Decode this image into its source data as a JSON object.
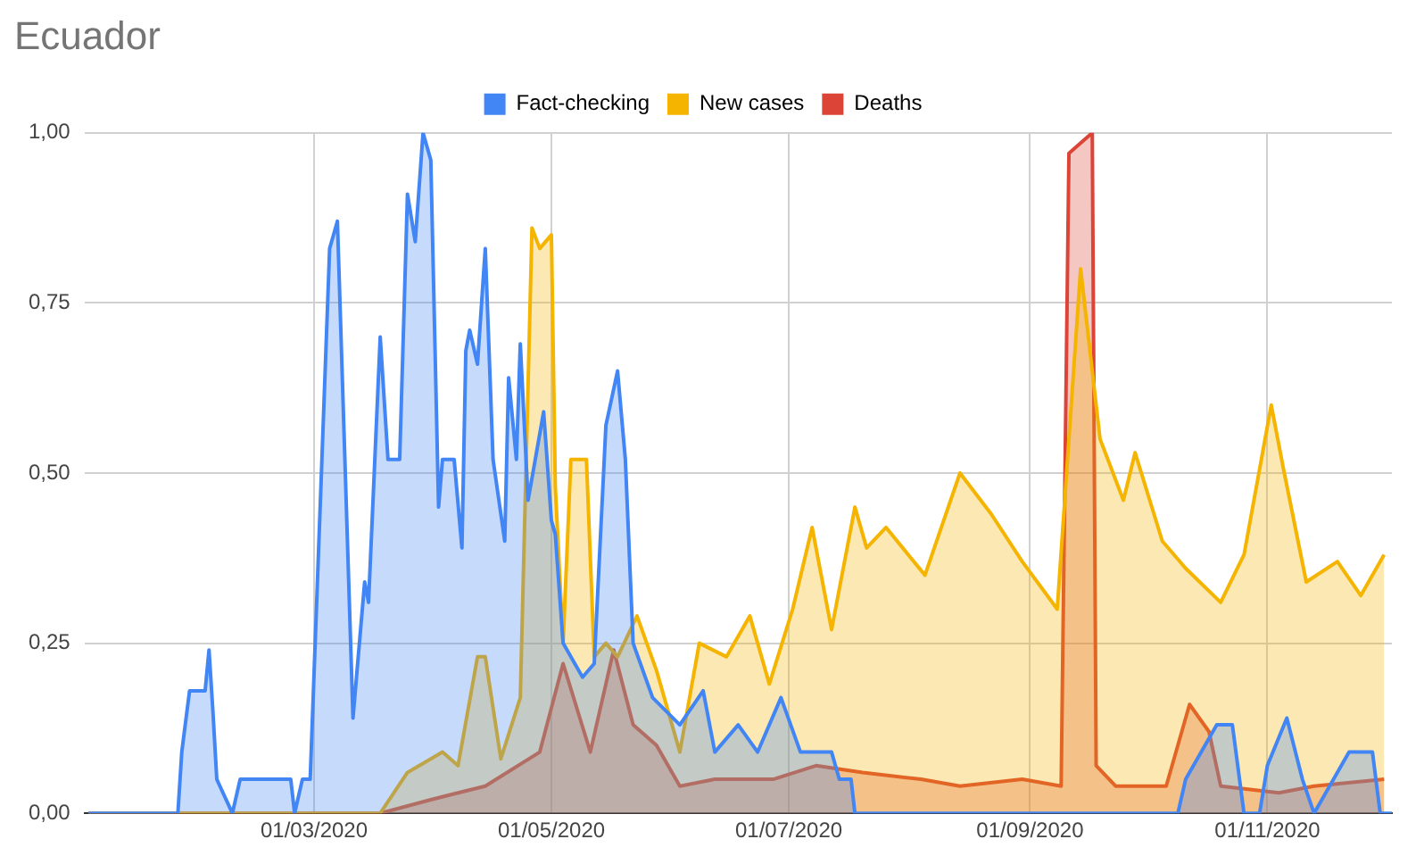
{
  "chart_data": {
    "type": "area",
    "title": "Ecuador",
    "legend": "top",
    "grid": true,
    "marker": "none",
    "xlim": [
      "2020-01-02",
      "2020-12-03"
    ],
    "xticks": [
      {
        "value": "2020-03-01",
        "label": "01/03/2020"
      },
      {
        "value": "2020-05-01",
        "label": "01/05/2020"
      },
      {
        "value": "2020-07-01",
        "label": "01/07/2020"
      },
      {
        "value": "2020-09-01",
        "label": "01/09/2020"
      },
      {
        "value": "2020-11-01",
        "label": "01/11/2020"
      }
    ],
    "ylim": [
      0,
      1
    ],
    "yticks": [
      {
        "value": 0,
        "label": "0,00"
      },
      {
        "value": 0.25,
        "label": "0,25"
      },
      {
        "value": 0.5,
        "label": "0,50"
      },
      {
        "value": 0.75,
        "label": "0,75"
      },
      {
        "value": 1,
        "label": "1,00"
      }
    ],
    "series": [
      {
        "name": "Fact-checking",
        "color": "#4285f4",
        "x": [
          "2020-01-03",
          "2020-01-26",
          "2020-01-27",
          "2020-01-29",
          "2020-02-02",
          "2020-02-03",
          "2020-02-04",
          "2020-02-05",
          "2020-02-09",
          "2020-02-11",
          "2020-02-24",
          "2020-02-25",
          "2020-02-27",
          "2020-02-29",
          "2020-03-05",
          "2020-03-07",
          "2020-03-11",
          "2020-03-14",
          "2020-03-15",
          "2020-03-18",
          "2020-03-20",
          "2020-03-23",
          "2020-03-25",
          "2020-03-27",
          "2020-03-29",
          "2020-03-31",
          "2020-04-02",
          "2020-04-03",
          "2020-04-06",
          "2020-04-08",
          "2020-04-09",
          "2020-04-10",
          "2020-04-12",
          "2020-04-14",
          "2020-04-16",
          "2020-04-19",
          "2020-04-20",
          "2020-04-22",
          "2020-04-23",
          "2020-04-25",
          "2020-04-29",
          "2020-05-01",
          "2020-05-02",
          "2020-05-04",
          "2020-05-09",
          "2020-05-12",
          "2020-05-15",
          "2020-05-18",
          "2020-05-20",
          "2020-05-22",
          "2020-05-27",
          "2020-06-03",
          "2020-06-09",
          "2020-06-12",
          "2020-06-18",
          "2020-06-23",
          "2020-06-29",
          "2020-07-04",
          "2020-07-12",
          "2020-07-14",
          "2020-07-17",
          "2020-07-18",
          "2020-10-09",
          "2020-10-11",
          "2020-10-19",
          "2020-10-23",
          "2020-10-26",
          "2020-10-30",
          "2020-11-01",
          "2020-11-06",
          "2020-11-10",
          "2020-11-13",
          "2020-11-22",
          "2020-11-28",
          "2020-11-30",
          "2020-12-03"
        ],
        "values": [
          0,
          0,
          0.09,
          0.18,
          0.18,
          0.24,
          0.15,
          0.05,
          0,
          0.05,
          0.05,
          0,
          0.05,
          0.05,
          0.83,
          0.87,
          0.14,
          0.34,
          0.31,
          0.7,
          0.52,
          0.52,
          0.91,
          0.84,
          1,
          0.96,
          0.45,
          0.52,
          0.52,
          0.39,
          0.68,
          0.71,
          0.66,
          0.83,
          0.52,
          0.4,
          0.64,
          0.52,
          0.69,
          0.46,
          0.59,
          0.43,
          0.41,
          0.25,
          0.2,
          0.22,
          0.57,
          0.65,
          0.52,
          0.25,
          0.17,
          0.13,
          0.18,
          0.09,
          0.13,
          0.09,
          0.17,
          0.09,
          0.09,
          0.05,
          0.05,
          0,
          0,
          0.05,
          0.13,
          0.13,
          0,
          0,
          0.07,
          0.14,
          0.05,
          0,
          0.09,
          0.09,
          0,
          0
        ]
      },
      {
        "name": "New cases",
        "color": "#f4b400",
        "x": [
          "2020-01-03",
          "2020-03-18",
          "2020-03-25",
          "2020-03-31",
          "2020-04-03",
          "2020-04-07",
          "2020-04-12",
          "2020-04-14",
          "2020-04-18",
          "2020-04-23",
          "2020-04-26",
          "2020-04-28",
          "2020-05-01",
          "2020-05-02",
          "2020-05-04",
          "2020-05-06",
          "2020-05-10",
          "2020-05-12",
          "2020-05-15",
          "2020-05-18",
          "2020-05-23",
          "2020-05-28",
          "2020-06-03",
          "2020-06-08",
          "2020-06-15",
          "2020-06-21",
          "2020-06-26",
          "2020-07-02",
          "2020-07-07",
          "2020-07-12",
          "2020-07-18",
          "2020-07-21",
          "2020-07-26",
          "2020-08-05",
          "2020-08-14",
          "2020-08-22",
          "2020-08-30",
          "2020-09-08",
          "2020-09-14",
          "2020-09-19",
          "2020-09-25",
          "2020-09-28",
          "2020-10-05",
          "2020-10-11",
          "2020-10-20",
          "2020-10-26",
          "2020-11-02",
          "2020-11-05",
          "2020-11-11",
          "2020-11-19",
          "2020-11-25",
          "2020-12-01"
        ],
        "values": [
          0,
          0,
          0.06,
          0.08,
          0.09,
          0.07,
          0.23,
          0.23,
          0.08,
          0.17,
          0.86,
          0.83,
          0.85,
          0.48,
          0.25,
          0.52,
          0.52,
          0.23,
          0.25,
          0.23,
          0.29,
          0.21,
          0.09,
          0.25,
          0.23,
          0.29,
          0.19,
          0.3,
          0.42,
          0.27,
          0.45,
          0.39,
          0.42,
          0.35,
          0.5,
          0.44,
          0.37,
          0.3,
          0.8,
          0.55,
          0.46,
          0.53,
          0.4,
          0.36,
          0.31,
          0.38,
          0.6,
          0.51,
          0.34,
          0.37,
          0.32,
          0.38
        ]
      },
      {
        "name": "Deaths",
        "color": "#db4437",
        "x": [
          "2020-01-03",
          "2020-03-18",
          "2020-03-31",
          "2020-04-14",
          "2020-04-28",
          "2020-05-04",
          "2020-05-11",
          "2020-05-17",
          "2020-05-22",
          "2020-05-28",
          "2020-06-03",
          "2020-06-12",
          "2020-06-27",
          "2020-07-08",
          "2020-07-20",
          "2020-08-04",
          "2020-08-14",
          "2020-08-30",
          "2020-09-09",
          "2020-09-11",
          "2020-09-17",
          "2020-09-18",
          "2020-09-23",
          "2020-10-06",
          "2020-10-12",
          "2020-10-17",
          "2020-10-20",
          "2020-11-04",
          "2020-11-13",
          "2020-12-01"
        ],
        "values": [
          0,
          0,
          0.02,
          0.04,
          0.09,
          0.22,
          0.09,
          0.24,
          0.13,
          0.1,
          0.04,
          0.05,
          0.05,
          0.07,
          0.06,
          0.05,
          0.04,
          0.05,
          0.04,
          0.97,
          1,
          0.07,
          0.04,
          0.04,
          0.16,
          0.12,
          0.04,
          0.03,
          0.04,
          0.05
        ]
      }
    ]
  }
}
